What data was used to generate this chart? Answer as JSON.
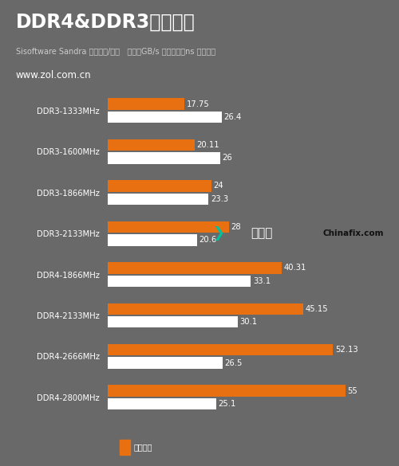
{
  "title": "DDR4&DDR3对比测试",
  "subtitle1": "Sisoftware Sandra 内存带宽/延迟   单位：GB/s 越大越好；ns 越小越好",
  "subtitle2": "www.zol.com.cn",
  "background_color": "#696969",
  "bar_orange": "#e87010",
  "bar_white": "#ffffff",
  "text_color_white": "#ffffff",
  "categories": [
    "DDR3-1333MHz",
    "DDR3-1600MHz",
    "DDR3-1866MHz",
    "DDR3-2133MHz",
    "DDR4-1866MHz",
    "DDR4-2133MHz",
    "DDR4-2666MHz",
    "DDR4-2800MHz"
  ],
  "bandwidth": [
    17.75,
    20.11,
    24,
    28,
    40.31,
    45.15,
    52.13,
    55
  ],
  "latency": [
    26.4,
    26,
    23.3,
    20.6,
    33.1,
    30.1,
    26.5,
    25.1
  ],
  "max_val": 60,
  "legend_label_bw": "内存带宽",
  "watermark1": "迅维网",
  "watermark2": "Chinafix.com"
}
